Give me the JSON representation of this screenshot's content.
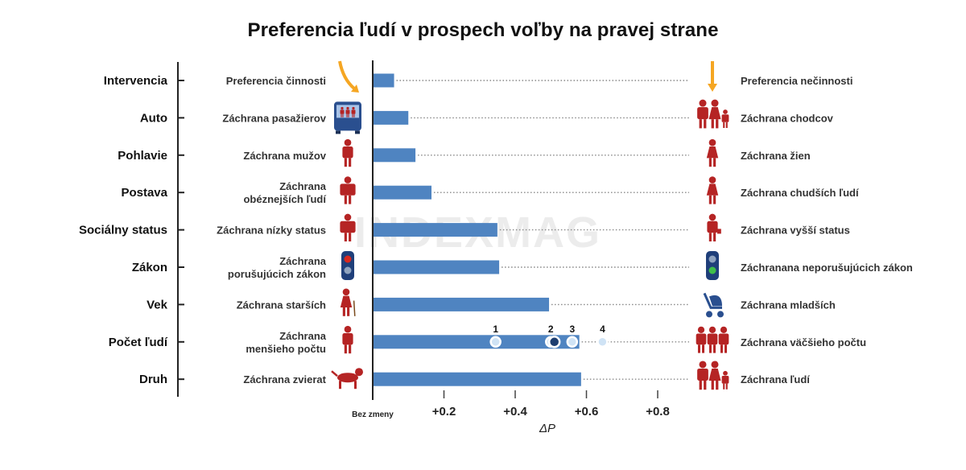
{
  "title": "Preferencia ľudí v prospech voľby na pravej strane",
  "watermark": "INDEXMAG",
  "colors": {
    "bar": "#4f84c1",
    "figure": "#b52424",
    "arrow": "#f5a623",
    "axis": "#222222",
    "dots": "#888888"
  },
  "chart_data": {
    "type": "bar",
    "orientation": "horizontal",
    "title": "Preferencia ľudí v prospech voľby na pravej strane",
    "xlabel": "ΔP",
    "x_axis_origin_label": "Bez zmeny",
    "xticks": [
      "+0.2",
      "+0.4",
      "+0.6",
      "+0.8"
    ],
    "xtick_values": [
      0.2,
      0.4,
      0.6,
      0.8
    ],
    "xlim": [
      0,
      0.8
    ],
    "categories": [
      "Intervencia",
      "Auto",
      "Pohlavie",
      "Postava",
      "Sociálny status",
      "Zákon",
      "Vek",
      "Počet ľudí",
      "Druh"
    ],
    "left_labels": [
      "Preferencia činnosti",
      "Záchrana pasažierov",
      "Záchrana mužov",
      "Záchrana\nobéznejších ľudí",
      "Záchrana nízky status",
      "Záchrana\nporušujúcich zákon",
      "Záchrana starších",
      "Záchrana\nmenšieho počtu",
      "Záchrana zvierat"
    ],
    "right_labels": [
      "Preferencia nečinnosti",
      "Záchrana chodcov",
      "Záchrana žien",
      "Záchrana chudších ľudí",
      "Záchrana vyšší status",
      "Záchranana neporušujúcich zákon",
      "Záchrana mladších",
      "Záchrana väčšieho počtu",
      "Záchrana ľudí"
    ],
    "left_icons": [
      "action-arrow",
      "bus",
      "man",
      "obese-person",
      "low-status-person",
      "red-traffic-light",
      "elderly-person",
      "single-person",
      "dog"
    ],
    "right_icons": [
      "inaction-arrow",
      "pedestrians-group",
      "woman",
      "thin-person",
      "high-status-person",
      "green-traffic-light",
      "stroller",
      "three-persons",
      "people-group"
    ],
    "values": [
      0.06,
      0.1,
      0.12,
      0.165,
      0.35,
      0.355,
      0.495,
      0.58,
      0.585
    ],
    "count_markers": [
      {
        "label": "1",
        "value": 0.345
      },
      {
        "label": "2",
        "value": 0.5
      },
      {
        "label": "3",
        "value": 0.56
      },
      {
        "label": "4",
        "value": 0.645
      }
    ],
    "count_markers_row": "Počet ľudí",
    "count_markers_highlight_value": 0.51,
    "grid": false
  }
}
